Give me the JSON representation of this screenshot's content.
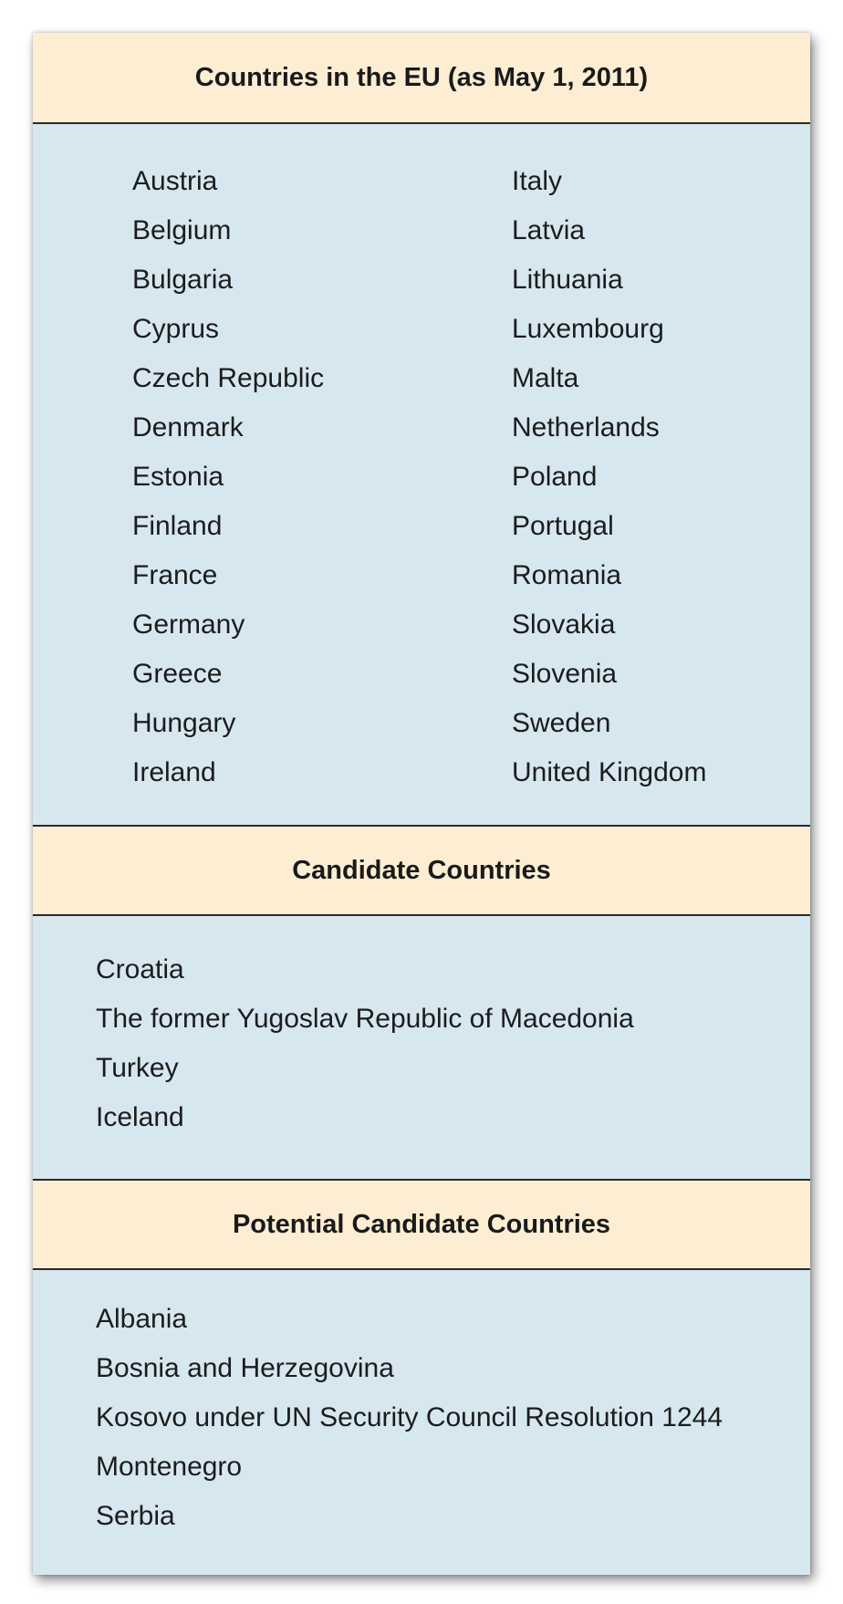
{
  "eu": {
    "title": "Countries in the EU (as May 1, 2011)",
    "left_column": [
      "Austria",
      "Belgium",
      "Bulgaria",
      "Cyprus",
      "Czech Republic",
      "Denmark",
      "Estonia",
      "Finland",
      "France",
      "Germany",
      "Greece",
      "Hungary",
      "Ireland"
    ],
    "right_column": [
      "Italy",
      "Latvia",
      "Lithuania",
      "Luxembourg",
      "Malta",
      "Netherlands",
      "Poland",
      "Portugal",
      "Romania",
      "Slovakia",
      "Slovenia",
      "Sweden",
      "United Kingdom"
    ]
  },
  "candidate": {
    "title": "Candidate Countries",
    "items": [
      "Croatia",
      "The former Yugoslav Republic of Macedonia",
      "Turkey",
      "Iceland"
    ]
  },
  "potential": {
    "title": "Potential Candidate Countries",
    "items": [
      "Albania",
      "Bosnia and Herzegovina",
      "Kosovo under UN Security Council Resolution 1244",
      "Montenegro",
      "Serbia"
    ]
  },
  "colors": {
    "header_bg": "#fdeed3",
    "body_bg": "#d6e7f0",
    "rule": "#2a2a2a"
  }
}
